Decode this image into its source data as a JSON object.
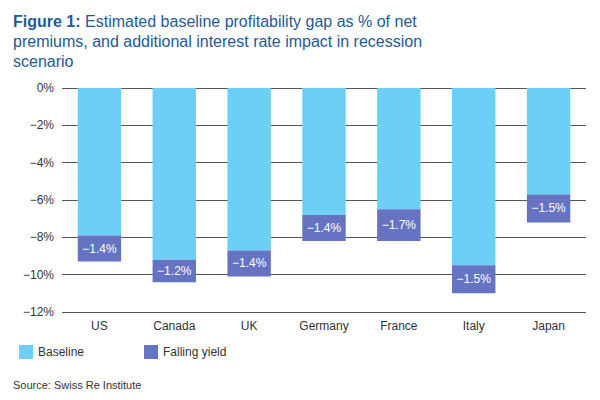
{
  "chart_data": {
    "type": "bar",
    "title": "Figure 1: Estimated baseline profitability gap as % of net premiums, and additional interest rate impact in recession scenario",
    "source": "Source: Swiss Re Institute",
    "categories": [
      "US",
      "Canada",
      "UK",
      "Germany",
      "France",
      "Italy",
      "Japan"
    ],
    "series": [
      {
        "name": "Baseline",
        "color": "#6dcff6",
        "values": [
          -7.9,
          -9.2,
          -8.7,
          -6.8,
          -6.5,
          -9.5,
          -5.7
        ]
      },
      {
        "name": "Falling yield",
        "color": "#6673c2",
        "values": [
          -1.4,
          -1.2,
          -1.4,
          -1.4,
          -1.7,
          -1.5,
          -1.5
        ],
        "value_labels": [
          "−1.4%",
          "−1.2%",
          "−1.4%",
          "−1.4%",
          "−1.7%",
          "−1.5%",
          "−1.5%"
        ]
      }
    ],
    "stacked": true,
    "data_labels": true,
    "ylim": [
      -12,
      0
    ],
    "yticks": [
      {
        "value": -12,
        "label": "−12%"
      },
      {
        "value": -10,
        "label": "−10%"
      },
      {
        "value": -8,
        "label": "−8%"
      },
      {
        "value": -6,
        "label": "−6%"
      },
      {
        "value": -4,
        "label": "−4%"
      },
      {
        "value": -2,
        "label": "−2%"
      },
      {
        "value": 0,
        "label": "0%"
      }
    ],
    "grid": true,
    "legend": "bottom-left"
  }
}
